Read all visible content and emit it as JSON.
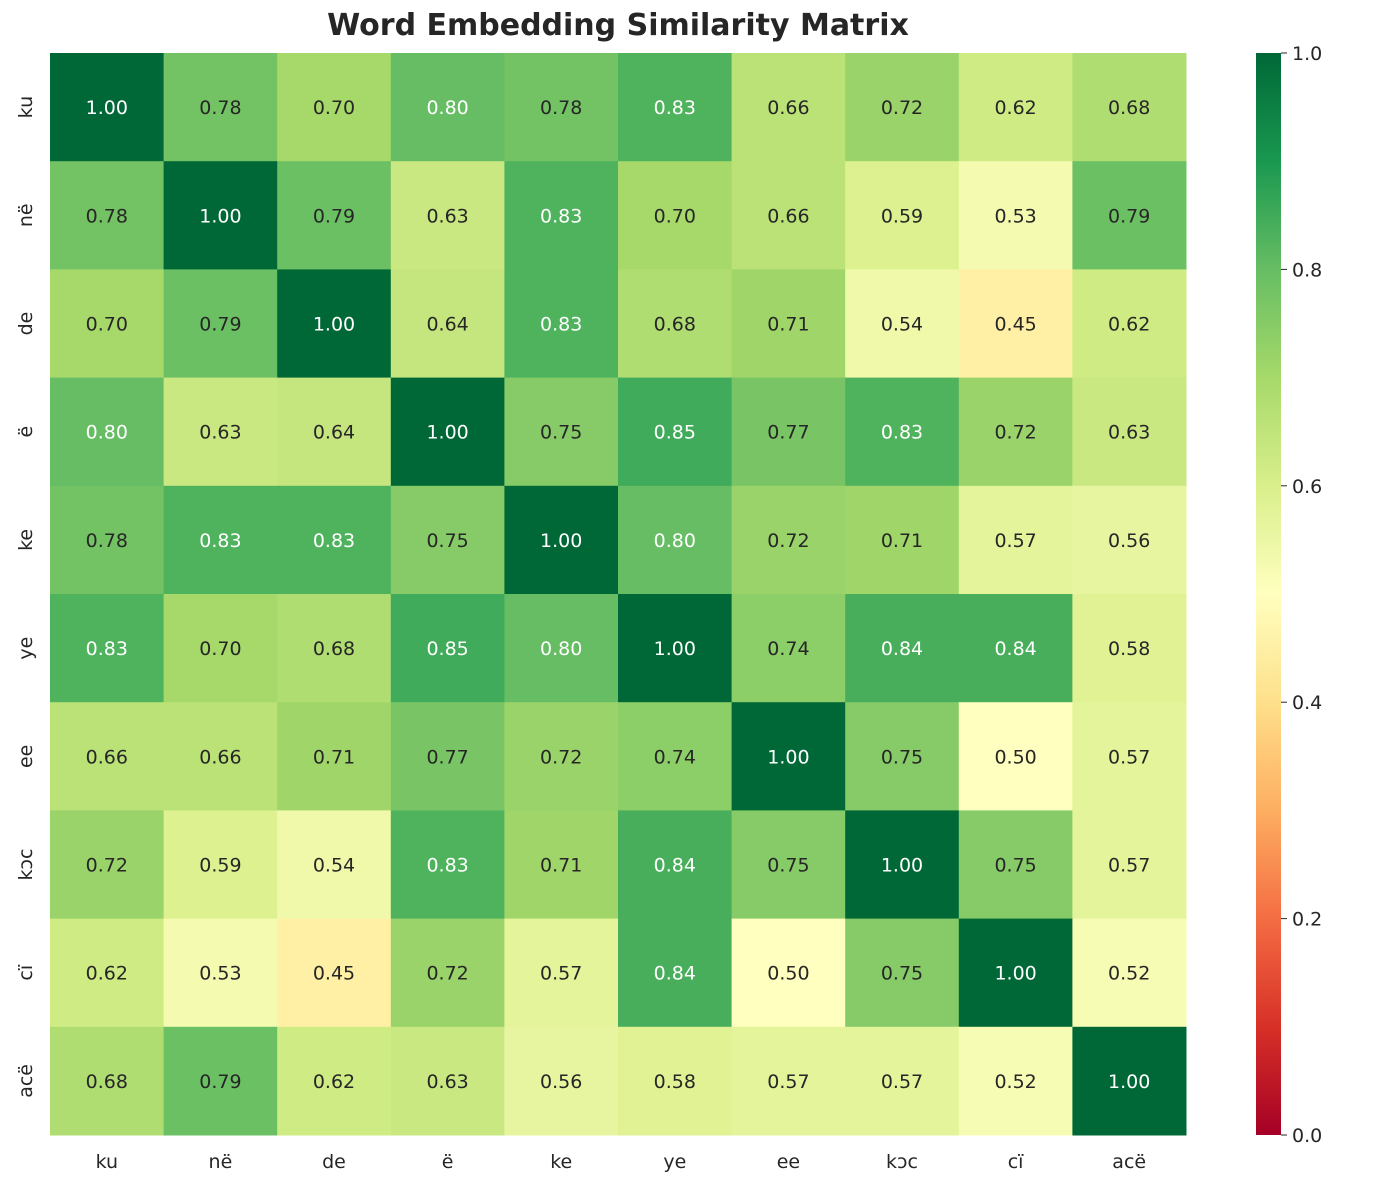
{
  "chart_data": {
    "type": "heatmap",
    "title": "Word Embedding Similarity Matrix",
    "x_labels": [
      "ku",
      "në",
      "de",
      "ë",
      "ke",
      "ye",
      "ee",
      "kɔc",
      "cï",
      "acë"
    ],
    "y_labels": [
      "ku",
      "në",
      "de",
      "ë",
      "ke",
      "ye",
      "ee",
      "kɔc",
      "cï",
      "acë"
    ],
    "values": [
      [
        1.0,
        0.78,
        0.7,
        0.8,
        0.78,
        0.83,
        0.66,
        0.72,
        0.62,
        0.68
      ],
      [
        0.78,
        1.0,
        0.79,
        0.63,
        0.83,
        0.7,
        0.66,
        0.59,
        0.53,
        0.79
      ],
      [
        0.7,
        0.79,
        1.0,
        0.64,
        0.83,
        0.68,
        0.71,
        0.54,
        0.45,
        0.62
      ],
      [
        0.8,
        0.63,
        0.64,
        1.0,
        0.75,
        0.85,
        0.77,
        0.83,
        0.72,
        0.63
      ],
      [
        0.78,
        0.83,
        0.83,
        0.75,
        1.0,
        0.8,
        0.72,
        0.71,
        0.57,
        0.56
      ],
      [
        0.83,
        0.7,
        0.68,
        0.85,
        0.8,
        1.0,
        0.74,
        0.84,
        0.84,
        0.58
      ],
      [
        0.66,
        0.66,
        0.71,
        0.77,
        0.72,
        0.74,
        1.0,
        0.75,
        0.5,
        0.57
      ],
      [
        0.72,
        0.59,
        0.54,
        0.83,
        0.71,
        0.84,
        0.75,
        1.0,
        0.75,
        0.57
      ],
      [
        0.62,
        0.53,
        0.45,
        0.72,
        0.57,
        0.84,
        0.5,
        0.75,
        1.0,
        0.52
      ],
      [
        0.68,
        0.79,
        0.62,
        0.63,
        0.56,
        0.58,
        0.57,
        0.57,
        0.52,
        1.0
      ]
    ],
    "annotation_format": "0.00",
    "colormap": "RdYlGn",
    "vmin": 0.0,
    "vmax": 1.0,
    "colorbar_ticks": [
      "0.0",
      "0.2",
      "0.4",
      "0.6",
      "0.8",
      "1.0"
    ],
    "colormap_stops": [
      "#a50026",
      "#d73027",
      "#f46d43",
      "#fdae61",
      "#fee08b",
      "#ffffbf",
      "#d9ef8b",
      "#a6d96a",
      "#66bd63",
      "#1a9850",
      "#006837"
    ]
  }
}
